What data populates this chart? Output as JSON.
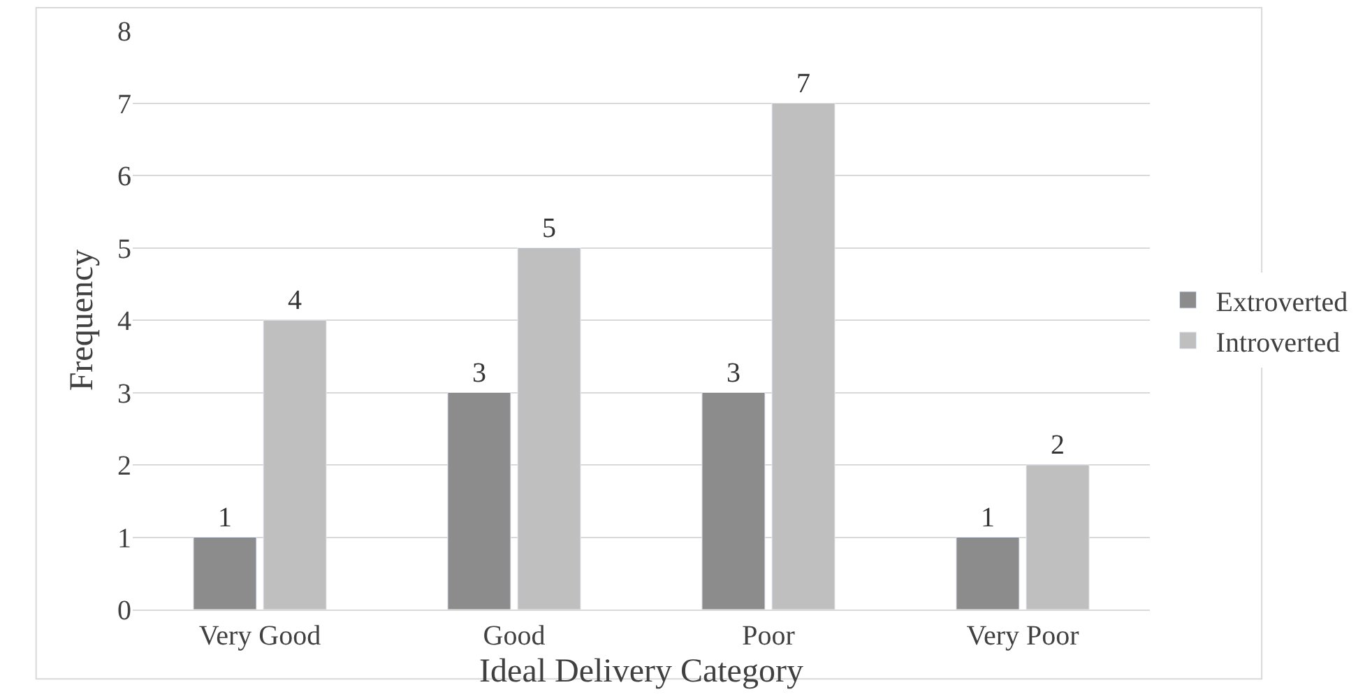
{
  "chart_data": {
    "type": "bar",
    "xlabel": "Ideal Delivery Category",
    "ylabel": "Frequency",
    "categories": [
      "Very Good",
      "Good",
      "Poor",
      "Very Poor"
    ],
    "series": [
      {
        "name": "Extroverted",
        "color": "#8c8c8c",
        "values": [
          1,
          3,
          3,
          1
        ]
      },
      {
        "name": "Introverted",
        "color": "#bfbfbf",
        "values": [
          4,
          5,
          7,
          2
        ]
      }
    ],
    "ylim": [
      0,
      8
    ],
    "yticks": [
      0,
      1,
      2,
      3,
      4,
      5,
      6,
      7,
      8
    ],
    "grid": "y",
    "legend": "right",
    "data_labels": true
  }
}
